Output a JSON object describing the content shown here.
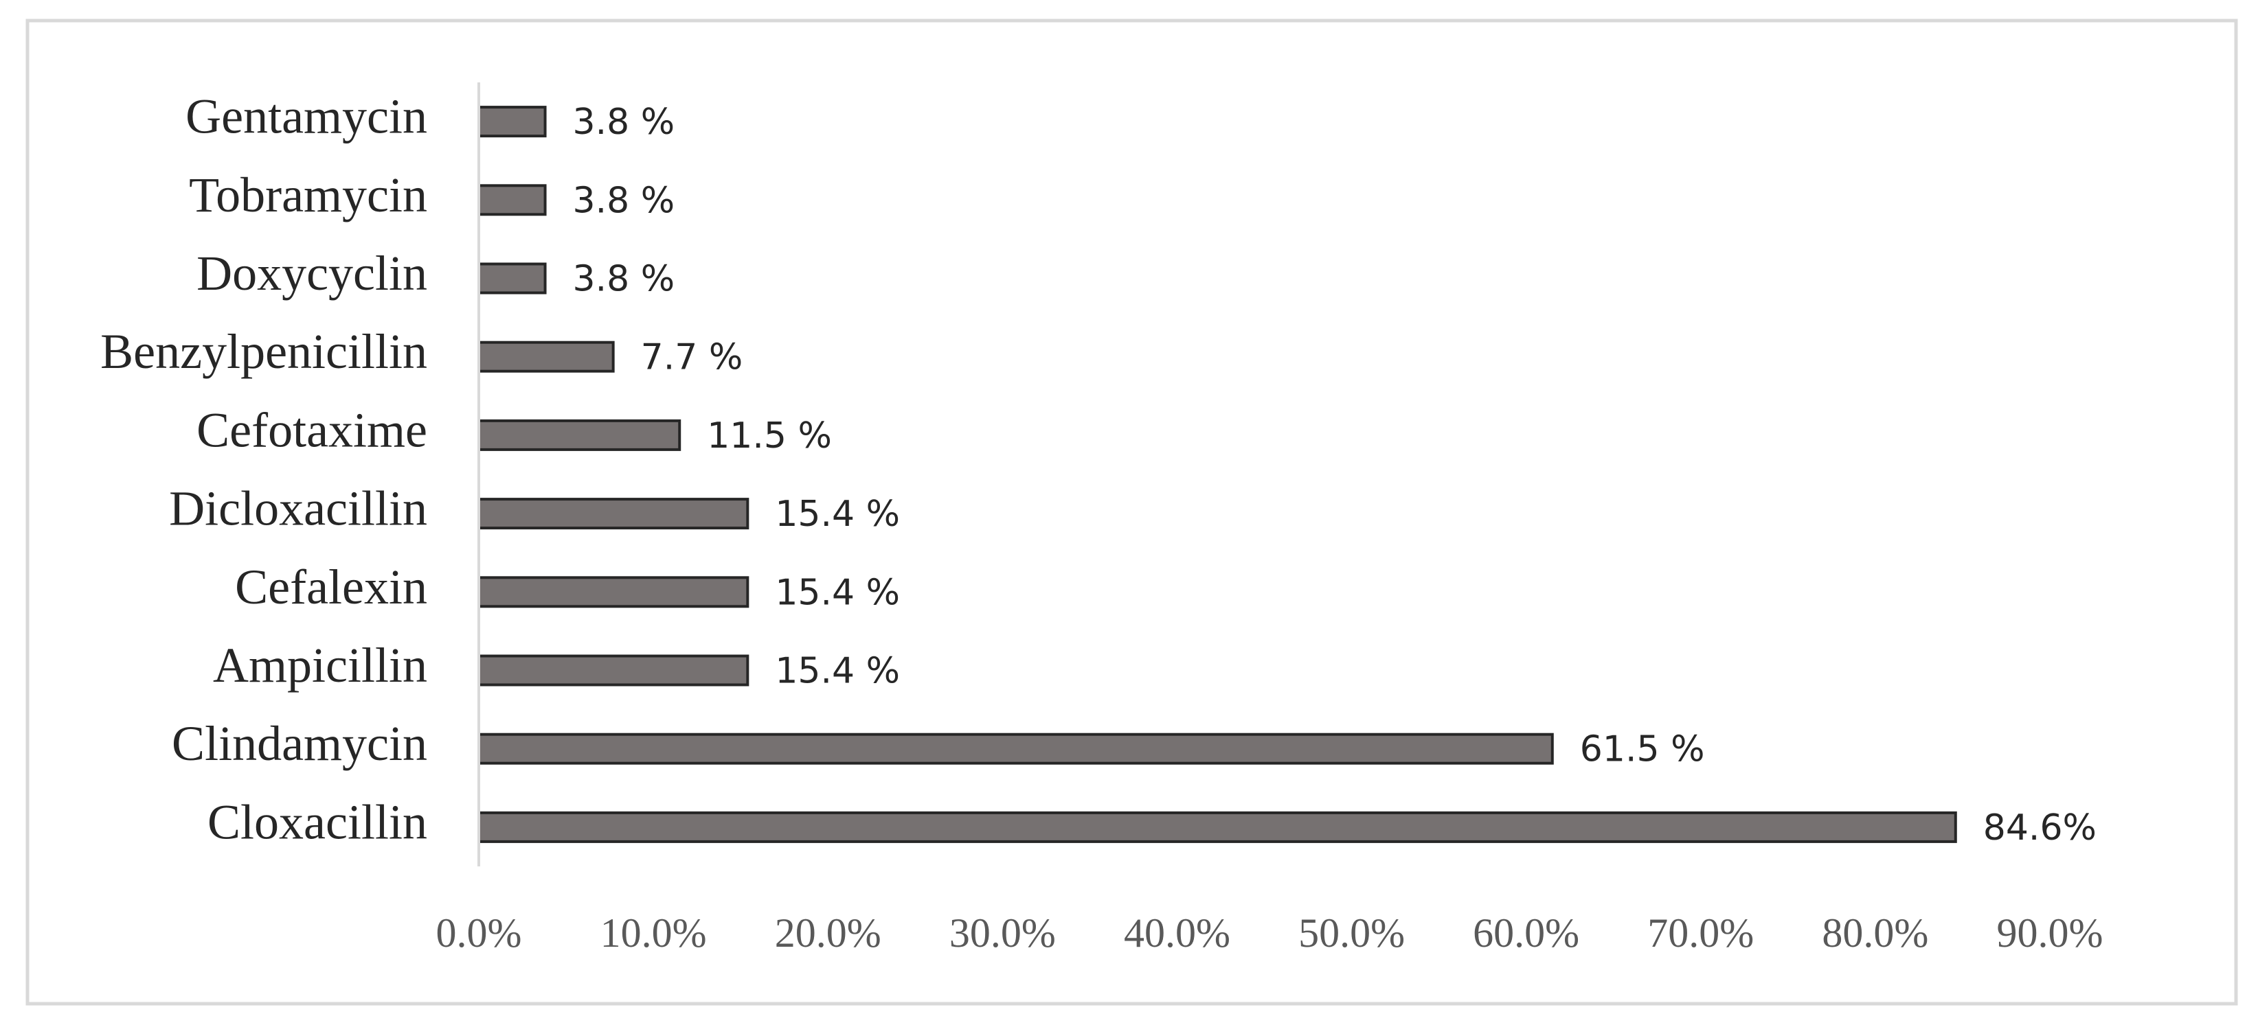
{
  "chart_data": {
    "type": "bar",
    "orientation": "horizontal",
    "categories": [
      "Gentamycin",
      "Tobramycin",
      "Doxycyclin",
      "Benzylpenicillin",
      "Cefotaxime",
      "Dicloxacillin",
      "Cefalexin",
      "Ampicillin",
      "Clindamycin",
      "Cloxacillin"
    ],
    "values": [
      3.8,
      3.8,
      3.8,
      7.7,
      11.5,
      15.4,
      15.4,
      15.4,
      61.5,
      84.6
    ],
    "value_labels": [
      "3.8 %",
      "3.8 %",
      "3.8 %",
      "7.7 %",
      "11.5 %",
      "15.4 %",
      "15.4 %",
      "15.4 %",
      "61.5 %",
      "84.6%"
    ],
    "color": "#767171",
    "xlim": [
      0,
      90
    ],
    "xticks": [
      {
        "value": 0,
        "label": "0.0%"
      },
      {
        "value": 10,
        "label": "10.0%"
      },
      {
        "value": 20,
        "label": "20.0%"
      },
      {
        "value": 30,
        "label": "30.0%"
      },
      {
        "value": 40,
        "label": "40.0%"
      },
      {
        "value": 50,
        "label": "50.0%"
      },
      {
        "value": 60,
        "label": "60.0%"
      },
      {
        "value": 70,
        "label": "70.0%"
      },
      {
        "value": 80,
        "label": "80.0%"
      },
      {
        "value": 90,
        "label": "90.0%"
      }
    ],
    "grid": false
  }
}
